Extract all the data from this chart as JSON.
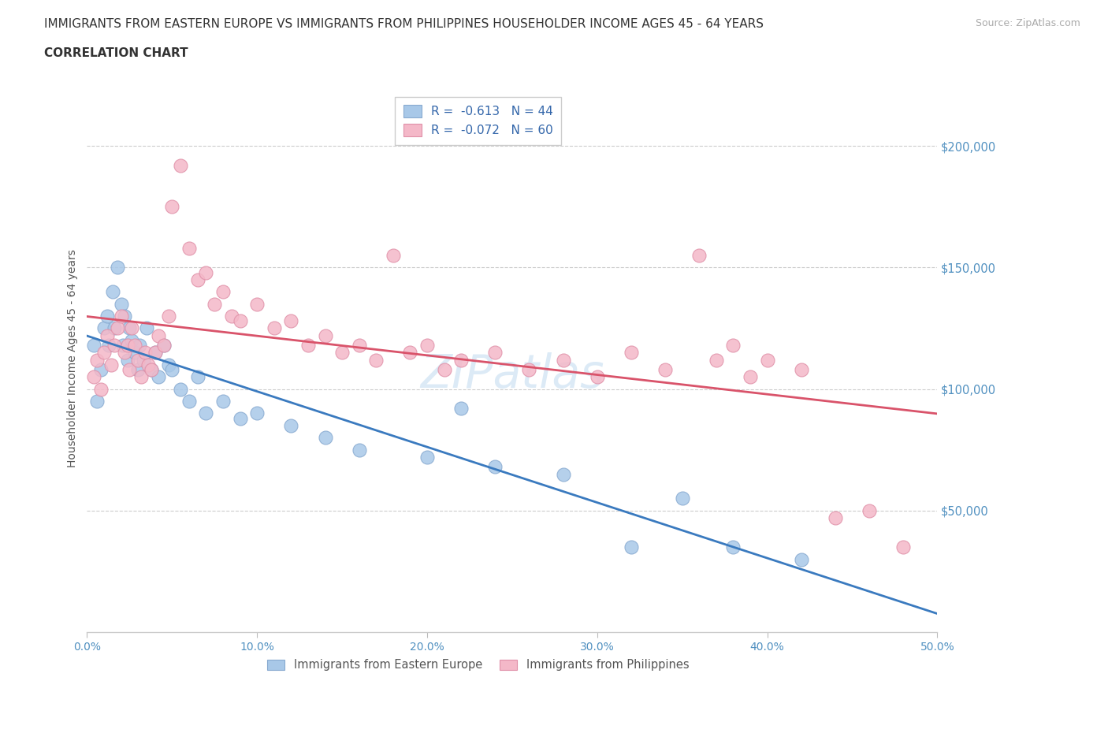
{
  "title_line1": "IMMIGRANTS FROM EASTERN EUROPE VS IMMIGRANTS FROM PHILIPPINES HOUSEHOLDER INCOME AGES 45 - 64 YEARS",
  "title_line2": "CORRELATION CHART",
  "source_text": "Source: ZipAtlas.com",
  "ylabel": "Householder Income Ages 45 - 64 years",
  "xlim": [
    0.0,
    0.5
  ],
  "ylim": [
    0,
    225000
  ],
  "xtick_values": [
    0.0,
    0.1,
    0.2,
    0.3,
    0.4,
    0.5
  ],
  "xtick_labels": [
    "0.0%",
    "10.0%",
    "20.0%",
    "30.0%",
    "40.0%",
    "50.0%"
  ],
  "ytick_values": [
    50000,
    100000,
    150000,
    200000
  ],
  "color_eastern": "#a8c8e8",
  "color_philippines": "#f4b8c8",
  "line_color_eastern": "#3a7abf",
  "line_color_philippines": "#d9536a",
  "watermark": "ZIPatlas",
  "R_eastern": -0.613,
  "N_eastern": 44,
  "R_philippines": -0.072,
  "N_philippines": 60,
  "eastern_europe_x": [
    0.004,
    0.006,
    0.008,
    0.01,
    0.012,
    0.013,
    0.015,
    0.016,
    0.018,
    0.02,
    0.021,
    0.022,
    0.024,
    0.025,
    0.026,
    0.028,
    0.03,
    0.031,
    0.033,
    0.035,
    0.038,
    0.04,
    0.042,
    0.045,
    0.048,
    0.05,
    0.055,
    0.06,
    0.065,
    0.07,
    0.08,
    0.09,
    0.1,
    0.12,
    0.14,
    0.16,
    0.2,
    0.22,
    0.24,
    0.28,
    0.32,
    0.35,
    0.38,
    0.42
  ],
  "eastern_europe_y": [
    118000,
    95000,
    108000,
    125000,
    130000,
    118000,
    140000,
    125000,
    150000,
    135000,
    118000,
    130000,
    112000,
    125000,
    120000,
    115000,
    108000,
    118000,
    112000,
    125000,
    108000,
    115000,
    105000,
    118000,
    110000,
    108000,
    100000,
    95000,
    105000,
    90000,
    95000,
    88000,
    90000,
    85000,
    80000,
    75000,
    72000,
    92000,
    68000,
    65000,
    35000,
    55000,
    35000,
    30000
  ],
  "philippines_x": [
    0.004,
    0.006,
    0.008,
    0.01,
    0.012,
    0.014,
    0.016,
    0.018,
    0.02,
    0.022,
    0.024,
    0.025,
    0.026,
    0.028,
    0.03,
    0.032,
    0.034,
    0.036,
    0.038,
    0.04,
    0.042,
    0.045,
    0.048,
    0.05,
    0.055,
    0.06,
    0.065,
    0.07,
    0.075,
    0.08,
    0.085,
    0.09,
    0.1,
    0.11,
    0.12,
    0.13,
    0.14,
    0.15,
    0.16,
    0.17,
    0.18,
    0.19,
    0.2,
    0.21,
    0.22,
    0.24,
    0.26,
    0.28,
    0.3,
    0.32,
    0.34,
    0.36,
    0.37,
    0.38,
    0.39,
    0.4,
    0.42,
    0.44,
    0.46,
    0.48
  ],
  "philippines_y": [
    105000,
    112000,
    100000,
    115000,
    122000,
    110000,
    118000,
    125000,
    130000,
    115000,
    118000,
    108000,
    125000,
    118000,
    112000,
    105000,
    115000,
    110000,
    108000,
    115000,
    122000,
    118000,
    130000,
    175000,
    192000,
    158000,
    145000,
    148000,
    135000,
    140000,
    130000,
    128000,
    135000,
    125000,
    128000,
    118000,
    122000,
    115000,
    118000,
    112000,
    155000,
    115000,
    118000,
    108000,
    112000,
    115000,
    108000,
    112000,
    105000,
    115000,
    108000,
    155000,
    112000,
    118000,
    105000,
    112000,
    108000,
    47000,
    50000,
    35000
  ]
}
